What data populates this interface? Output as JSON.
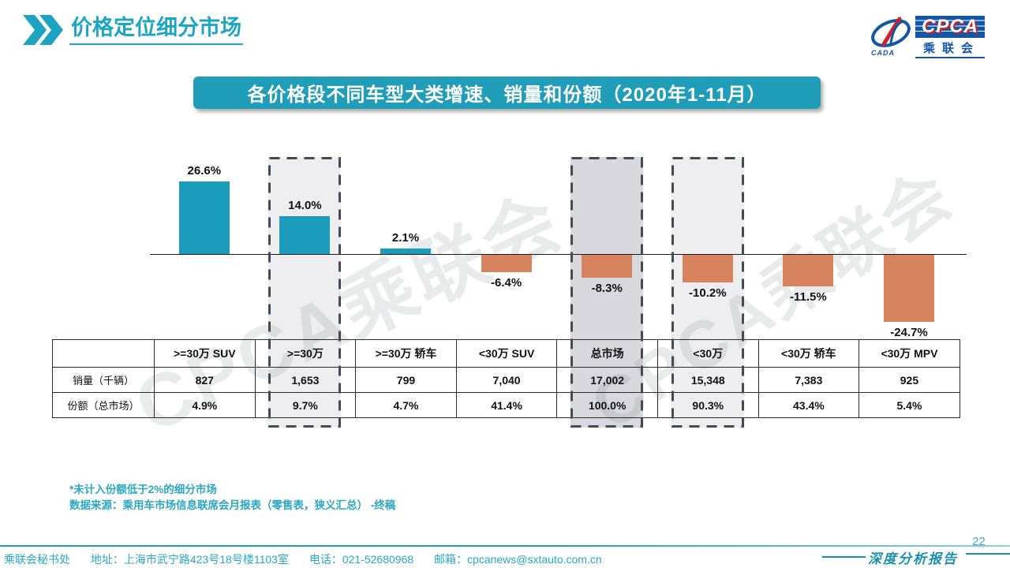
{
  "page": {
    "title": "价格定位细分市场",
    "banner": "各价格段不同车型大类增速、销量和份额（2020年1-11月）",
    "watermark": "CPCA乘联会",
    "page_number": "22",
    "report_label": "深度分析报告"
  },
  "logo": {
    "cpca": "CPCA",
    "association": "乘联会",
    "emblem_caption": "CADA"
  },
  "chart_data": {
    "type": "bar",
    "categories": [
      ">=30万 SUV",
      ">=30万",
      ">=30万 轿车",
      "<30万 SUV",
      "总市场",
      "<30万",
      "<30万 轿车",
      "<30万 MPV"
    ],
    "values": [
      26.6,
      14.0,
      2.1,
      -6.4,
      -8.3,
      -10.2,
      -11.5,
      -24.7
    ],
    "labels": [
      "26.6%",
      "14.0%",
      "2.1%",
      "-6.4%",
      "-8.3%",
      "-10.2%",
      "-11.5%",
      "-24.7%"
    ],
    "title": "各价格段不同车型大类增速、销量和份额（2020年1-11月）",
    "xlabel": "",
    "ylabel": "",
    "ylim": [
      -30,
      30
    ],
    "grid": false,
    "legend": false,
    "positive_color": "#1b9cba",
    "negative_color": "#d8835f",
    "highlighted_columns": [
      {
        "index": 1,
        "shade": "light"
      },
      {
        "index": 4,
        "shade": "dark"
      },
      {
        "index": 5,
        "shade": "light"
      }
    ]
  },
  "table": {
    "columns": [
      ">=30万 SUV",
      ">=30万",
      ">=30万 轿车",
      "<30万 SUV",
      "总市场",
      "<30万",
      "<30万 轿车",
      "<30万 MPV"
    ],
    "row_headers": [
      "销量（千辆）",
      "份额（总市场）"
    ],
    "rows": [
      [
        "827",
        "1,653",
        "799",
        "7,040",
        "17,002",
        "15,348",
        "7,383",
        "925"
      ],
      [
        "4.9%",
        "9.7%",
        "4.7%",
        "41.4%",
        "100.0%",
        "90.3%",
        "43.4%",
        "5.4%"
      ]
    ]
  },
  "notes": {
    "line1": "*未计入份额低于2%的细分市场",
    "line2": "数据来源：乘用车市场信息联席会月报表（零售表，狭义汇总）  -终稿"
  },
  "footer": {
    "org": "乘联会秘书处",
    "address": "地址：上海市武宁路423号18号楼1103室",
    "phone": "电话：021-52680968",
    "email": "邮箱：cpcanews@sxtauto.com.cn"
  },
  "colors": {
    "teal": "#1ca6c4",
    "banner_bg": "#1f9db9",
    "bar_positive": "#1b9cba",
    "bar_negative": "#d8835f",
    "highlight_light": "#eeeef1",
    "highlight_dark": "#d8d8de",
    "dash_border": "#454b55",
    "logo_blue": "#1356a8",
    "logo_red": "#cc2127"
  }
}
